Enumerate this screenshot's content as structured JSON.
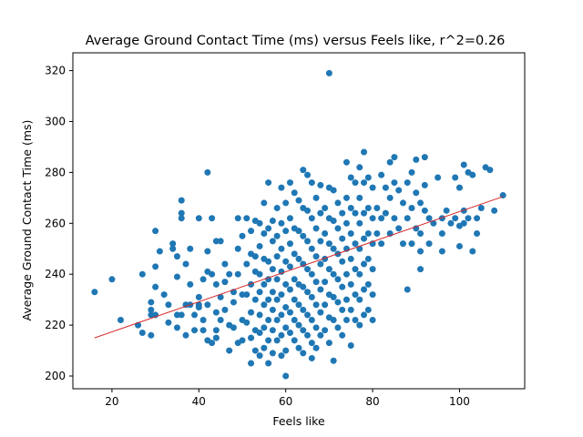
{
  "chart_data": {
    "type": "scatter",
    "title": "Average Ground Contact Time (ms) versus Feels like, r^2=0.26",
    "xlabel": "Feels like",
    "ylabel": "Average Ground Contact Time (ms)",
    "xlim": [
      11,
      115
    ],
    "ylim": [
      195,
      327
    ],
    "x_ticks": [
      20,
      40,
      60,
      80,
      100
    ],
    "y_ticks": [
      200,
      220,
      240,
      260,
      280,
      300,
      320
    ],
    "grid": false,
    "legend": "none",
    "colors": {
      "points": "#1f77b4",
      "trend": "#d62728"
    },
    "trend_line": {
      "x": [
        16,
        110
      ],
      "y": [
        215,
        270.5
      ]
    },
    "points": [
      [
        16,
        233
      ],
      [
        20,
        238
      ],
      [
        22,
        222
      ],
      [
        26,
        220
      ],
      [
        27,
        240
      ],
      [
        27,
        217
      ],
      [
        29,
        226
      ],
      [
        29,
        224
      ],
      [
        29,
        229
      ],
      [
        29,
        216
      ],
      [
        30,
        257
      ],
      [
        30,
        243
      ],
      [
        30,
        235
      ],
      [
        30,
        224
      ],
      [
        31,
        249
      ],
      [
        32,
        232
      ],
      [
        33,
        228
      ],
      [
        33,
        221
      ],
      [
        34,
        252
      ],
      [
        34,
        250
      ],
      [
        35,
        239
      ],
      [
        35,
        224
      ],
      [
        35,
        219
      ],
      [
        35,
        247
      ],
      [
        36,
        269
      ],
      [
        36,
        264
      ],
      [
        36,
        262
      ],
      [
        36,
        224
      ],
      [
        37,
        244
      ],
      [
        37,
        228
      ],
      [
        37,
        216
      ],
      [
        38,
        228
      ],
      [
        38,
        250
      ],
      [
        38,
        236
      ],
      [
        39,
        218
      ],
      [
        39,
        224
      ],
      [
        40,
        262
      ],
      [
        40,
        231
      ],
      [
        40,
        228
      ],
      [
        40,
        227
      ],
      [
        41,
        238
      ],
      [
        41,
        222
      ],
      [
        41,
        218
      ],
      [
        42,
        280
      ],
      [
        42,
        249
      ],
      [
        42,
        241
      ],
      [
        42,
        228
      ],
      [
        42,
        214
      ],
      [
        43,
        262
      ],
      [
        43,
        240
      ],
      [
        43,
        213
      ],
      [
        44,
        253
      ],
      [
        44,
        236
      ],
      [
        44,
        225
      ],
      [
        44,
        218
      ],
      [
        44,
        215
      ],
      [
        45,
        253
      ],
      [
        45,
        231
      ],
      [
        45,
        222
      ],
      [
        46,
        244
      ],
      [
        46,
        237
      ],
      [
        46,
        226
      ],
      [
        47,
        240
      ],
      [
        47,
        220
      ],
      [
        47,
        210
      ],
      [
        48,
        229
      ],
      [
        48,
        219
      ],
      [
        48,
        233
      ],
      [
        49,
        262
      ],
      [
        49,
        250
      ],
      [
        49,
        240
      ],
      [
        49,
        213
      ],
      [
        50,
        255
      ],
      [
        50,
        232
      ],
      [
        50,
        222
      ],
      [
        50,
        214
      ],
      [
        51,
        244
      ],
      [
        51,
        232
      ],
      [
        51,
        221
      ],
      [
        51,
        262
      ],
      [
        52,
        257
      ],
      [
        52,
        248
      ],
      [
        52,
        236
      ],
      [
        52,
        225
      ],
      [
        52,
        215
      ],
      [
        52,
        205
      ],
      [
        53,
        261
      ],
      [
        53,
        247
      ],
      [
        53,
        241
      ],
      [
        53,
        230
      ],
      [
        53,
        218
      ],
      [
        53,
        210
      ],
      [
        54,
        260
      ],
      [
        54,
        251
      ],
      [
        54,
        240
      ],
      [
        54,
        233
      ],
      [
        54,
        224
      ],
      [
        54,
        217
      ],
      [
        54,
        208
      ],
      [
        55,
        268
      ],
      [
        55,
        256
      ],
      [
        55,
        246
      ],
      [
        55,
        236
      ],
      [
        55,
        228
      ],
      [
        55,
        219
      ],
      [
        55,
        211
      ],
      [
        56,
        276
      ],
      [
        56,
        258
      ],
      [
        56,
        245
      ],
      [
        56,
        238
      ],
      [
        56,
        230
      ],
      [
        56,
        222
      ],
      [
        56,
        214
      ],
      [
        56,
        205
      ],
      [
        57,
        261
      ],
      [
        57,
        253
      ],
      [
        57,
        242
      ],
      [
        57,
        233
      ],
      [
        57,
        226
      ],
      [
        57,
        218
      ],
      [
        57,
        209
      ],
      [
        58,
        266
      ],
      [
        58,
        255
      ],
      [
        58,
        247
      ],
      [
        58,
        238
      ],
      [
        58,
        230
      ],
      [
        58,
        222
      ],
      [
        58,
        214
      ],
      [
        59,
        274
      ],
      [
        59,
        260
      ],
      [
        59,
        250
      ],
      [
        59,
        241
      ],
      [
        59,
        232
      ],
      [
        59,
        224
      ],
      [
        59,
        216
      ],
      [
        59,
        208
      ],
      [
        60,
        268
      ],
      [
        60,
        257
      ],
      [
        60,
        245
      ],
      [
        60,
        236
      ],
      [
        60,
        227
      ],
      [
        60,
        219
      ],
      [
        60,
        210
      ],
      [
        60,
        200
      ],
      [
        61,
        276
      ],
      [
        61,
        262
      ],
      [
        61,
        252
      ],
      [
        61,
        243
      ],
      [
        61,
        234
      ],
      [
        61,
        225
      ],
      [
        61,
        217
      ],
      [
        62,
        272
      ],
      [
        62,
        258
      ],
      [
        62,
        248
      ],
      [
        62,
        238
      ],
      [
        62,
        230
      ],
      [
        62,
        222
      ],
      [
        62,
        214
      ],
      [
        63,
        269
      ],
      [
        63,
        257
      ],
      [
        63,
        246
      ],
      [
        63,
        236
      ],
      [
        63,
        228
      ],
      [
        63,
        220
      ],
      [
        63,
        211
      ],
      [
        64,
        281
      ],
      [
        64,
        266
      ],
      [
        64,
        255
      ],
      [
        64,
        244
      ],
      [
        64,
        235
      ],
      [
        64,
        226
      ],
      [
        64,
        218
      ],
      [
        64,
        209
      ],
      [
        65,
        279
      ],
      [
        65,
        265
      ],
      [
        65,
        253
      ],
      [
        65,
        242
      ],
      [
        65,
        233
      ],
      [
        65,
        224
      ],
      [
        65,
        216
      ],
      [
        66,
        276
      ],
      [
        66,
        262
      ],
      [
        66,
        250
      ],
      [
        66,
        240
      ],
      [
        66,
        231
      ],
      [
        66,
        222
      ],
      [
        66,
        213
      ],
      [
        66,
        207
      ],
      [
        67,
        270
      ],
      [
        67,
        258
      ],
      [
        67,
        247
      ],
      [
        67,
        237
      ],
      [
        67,
        228
      ],
      [
        67,
        219
      ],
      [
        67,
        211
      ],
      [
        68,
        275
      ],
      [
        68,
        264
      ],
      [
        68,
        253
      ],
      [
        68,
        244
      ],
      [
        68,
        234
      ],
      [
        68,
        225
      ],
      [
        68,
        216
      ],
      [
        69,
        266
      ],
      [
        69,
        256
      ],
      [
        69,
        246
      ],
      [
        69,
        237
      ],
      [
        69,
        228
      ],
      [
        69,
        218
      ],
      [
        70,
        319
      ],
      [
        70,
        274
      ],
      [
        70,
        262
      ],
      [
        70,
        252
      ],
      [
        70,
        242
      ],
      [
        70,
        232
      ],
      [
        70,
        223
      ],
      [
        70,
        213
      ],
      [
        71,
        273
      ],
      [
        71,
        261
      ],
      [
        71,
        250
      ],
      [
        71,
        240
      ],
      [
        71,
        231
      ],
      [
        71,
        222
      ],
      [
        71,
        206
      ],
      [
        72,
        268
      ],
      [
        72,
        258
      ],
      [
        72,
        248
      ],
      [
        72,
        238
      ],
      [
        72,
        229
      ],
      [
        72,
        219
      ],
      [
        73,
        264
      ],
      [
        73,
        254
      ],
      [
        73,
        245
      ],
      [
        73,
        235
      ],
      [
        73,
        226
      ],
      [
        73,
        216
      ],
      [
        74,
        284
      ],
      [
        74,
        270
      ],
      [
        74,
        260
      ],
      [
        74,
        250
      ],
      [
        74,
        240
      ],
      [
        74,
        230
      ],
      [
        74,
        222
      ],
      [
        75,
        278
      ],
      [
        75,
        266
      ],
      [
        75,
        256
      ],
      [
        75,
        246
      ],
      [
        75,
        236
      ],
      [
        75,
        226
      ],
      [
        75,
        212
      ],
      [
        76,
        276
      ],
      [
        76,
        264
      ],
      [
        76,
        252
      ],
      [
        76,
        242
      ],
      [
        76,
        232
      ],
      [
        76,
        222
      ],
      [
        77,
        282
      ],
      [
        77,
        270
      ],
      [
        77,
        260
      ],
      [
        77,
        250
      ],
      [
        77,
        240
      ],
      [
        77,
        230
      ],
      [
        77,
        220
      ],
      [
        78,
        288
      ],
      [
        78,
        276
      ],
      [
        78,
        264
      ],
      [
        78,
        254
      ],
      [
        78,
        244
      ],
      [
        78,
        234
      ],
      [
        78,
        224
      ],
      [
        79,
        278
      ],
      [
        79,
        266
      ],
      [
        79,
        256
      ],
      [
        79,
        246
      ],
      [
        79,
        236
      ],
      [
        79,
        226
      ],
      [
        80,
        274
      ],
      [
        80,
        262
      ],
      [
        80,
        252
      ],
      [
        80,
        242
      ],
      [
        80,
        232
      ],
      [
        80,
        222
      ],
      [
        81,
        266
      ],
      [
        81,
        256
      ],
      [
        82,
        279
      ],
      [
        82,
        262
      ],
      [
        82,
        252
      ],
      [
        83,
        274
      ],
      [
        83,
        264
      ],
      [
        84,
        284
      ],
      [
        84,
        270
      ],
      [
        84,
        256
      ],
      [
        85,
        286
      ],
      [
        85,
        276
      ],
      [
        85,
        262
      ],
      [
        86,
        273
      ],
      [
        86,
        258
      ],
      [
        87,
        268
      ],
      [
        87,
        252
      ],
      [
        88,
        276
      ],
      [
        88,
        262
      ],
      [
        88,
        234
      ],
      [
        89,
        280
      ],
      [
        89,
        266
      ],
      [
        89,
        252
      ],
      [
        90,
        285
      ],
      [
        90,
        272
      ],
      [
        90,
        258
      ],
      [
        91,
        268
      ],
      [
        91,
        256
      ],
      [
        91,
        249
      ],
      [
        91,
        242
      ],
      [
        92,
        286
      ],
      [
        92,
        275
      ],
      [
        92,
        265
      ],
      [
        93,
        262
      ],
      [
        93,
        252
      ],
      [
        94,
        260
      ],
      [
        95,
        278
      ],
      [
        96,
        262
      ],
      [
        96,
        256
      ],
      [
        96,
        249
      ],
      [
        97,
        265
      ],
      [
        98,
        260
      ],
      [
        99,
        278
      ],
      [
        99,
        262
      ],
      [
        100,
        274
      ],
      [
        100,
        259
      ],
      [
        100,
        251
      ],
      [
        101,
        283
      ],
      [
        101,
        265
      ],
      [
        101,
        260
      ],
      [
        102,
        280
      ],
      [
        102,
        262
      ],
      [
        103,
        279
      ],
      [
        103,
        249
      ],
      [
        104,
        262
      ],
      [
        104,
        256
      ],
      [
        105,
        266
      ],
      [
        106,
        282
      ],
      [
        107,
        281
      ],
      [
        108,
        265
      ],
      [
        110,
        271
      ]
    ]
  }
}
